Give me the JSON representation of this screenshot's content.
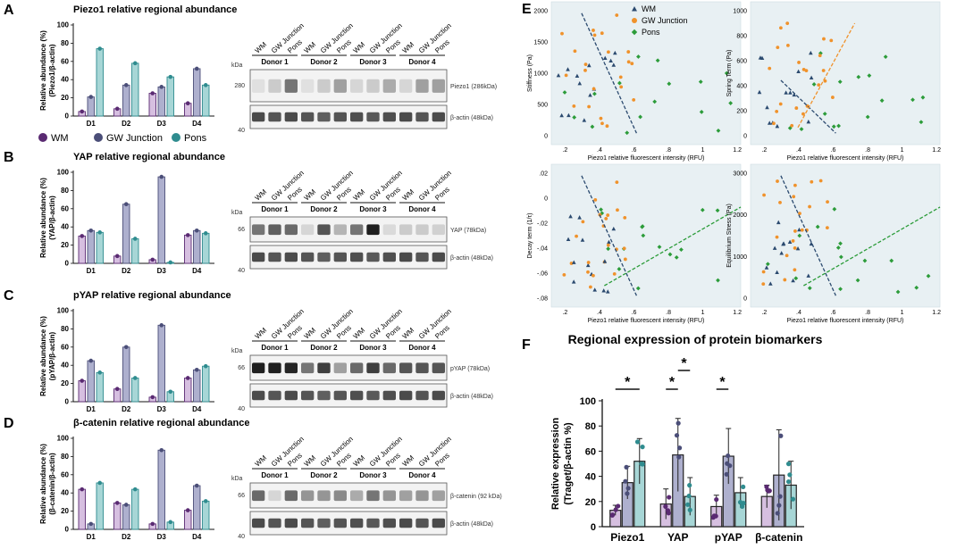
{
  "colors": {
    "wm": "#5a2a72",
    "gw": "#4b4e78",
    "pons": "#2f8c8f",
    "wm_fill": "#d6bfe0",
    "gw_fill": "#aeb0ce",
    "pons_fill": "#a7d6d6",
    "sc_wm": "#2b4a6f",
    "sc_gw": "#f0922b",
    "sc_pons": "#2c9c3a",
    "sc_bg": "#e8f0f3"
  },
  "legend_abcd": [
    "WM",
    "GW Junction",
    "Pons"
  ],
  "blot_lanes": [
    "WM",
    "GW Junction",
    "Pons"
  ],
  "donors": [
    "Donor 1",
    "Donor 2",
    "Donor 3",
    "Donor 4"
  ],
  "kda_label": "kDa",
  "panels": [
    {
      "letter": "A",
      "title": "Piezo1 relative regional abundance",
      "ylabel1": "Relative abundance (%)",
      "ylabel2": "(Piezo1/β-actin)",
      "band1": "Piezo1 (286kDa)",
      "band2": "β-actin (48kDa)",
      "mw1": "280",
      "mw2": "40"
    },
    {
      "letter": "B",
      "title": "YAP relative regional abundance",
      "ylabel1": "Relative abundance (%)",
      "ylabel2": "(YAP/β-actin)",
      "band1": "YAP (78kDa)",
      "band2": "β-actin (48kDa)",
      "mw1": "66",
      "mw2": "40"
    },
    {
      "letter": "C",
      "title": "pYAP relative regional abundance",
      "ylabel1": "Relative abundance (%)",
      "ylabel2": "(pYAP/β-actin)",
      "band1": "pYAP (78kDa)",
      "band2": "β-actin (48kDa)",
      "mw1": "66",
      "mw2": "40"
    },
    {
      "letter": "D",
      "title": "β-catenin relative regional abundance",
      "ylabel1": "Relative abundance (%)",
      "ylabel2": "(β-catenin/β-actin)",
      "band1": "β-catenin (92 kDa)",
      "band2": "β-actin (48kDa)",
      "mw1": "66",
      "mw2": "40"
    }
  ],
  "scatter_panel": {
    "letter": "E",
    "legend": [
      "WM",
      "GW Junction",
      "Pons"
    ],
    "xlabel": "Piezo1 relative fluorescent intensity (RFU)",
    "plots": [
      {
        "ylabel": "Stiffness (Pa)",
        "yticks": [
          "2000",
          "1500",
          "1000",
          "500",
          "0"
        ]
      },
      {
        "ylabel": "Spring Term (Pa)",
        "yticks": [
          "1000",
          "800",
          "600",
          "400",
          "200",
          "0"
        ]
      },
      {
        "ylabel": "Decay term (1/τ)",
        "yticks": [
          ".02",
          "0",
          "-.02",
          "-.04",
          "-.06",
          "-.08"
        ]
      },
      {
        "ylabel": "Equilibrium Stress (Pa)",
        "yticks": [
          "3000",
          "2000",
          "1000",
          "0"
        ]
      }
    ],
    "xticks": [
      ".2",
      ".4",
      ".6",
      ".8",
      "1",
      "1.2"
    ]
  },
  "chart_data": [
    {
      "type": "bar",
      "panel": "A",
      "title": "Piezo1 relative regional abundance",
      "categories": [
        "D1",
        "D2",
        "D3",
        "D4"
      ],
      "ylabel": "Relative abundance (%) (Piezo1/β-actin)",
      "ylim": [
        0,
        100
      ],
      "yticks": [
        0,
        20,
        40,
        60,
        80,
        100
      ],
      "series": [
        {
          "name": "WM",
          "values": [
            5,
            8,
            25,
            14
          ]
        },
        {
          "name": "GW Junction",
          "values": [
            21,
            34,
            32,
            52
          ]
        },
        {
          "name": "Pons",
          "values": [
            74,
            58,
            43,
            34
          ]
        }
      ]
    },
    {
      "type": "bar",
      "panel": "B",
      "title": "YAP relative regional abundance",
      "categories": [
        "D1",
        "D2",
        "D3",
        "D4"
      ],
      "ylabel": "Relative abundance (%) (YAP/β-actin)",
      "ylim": [
        0,
        100
      ],
      "yticks": [
        0,
        20,
        40,
        60,
        80,
        100
      ],
      "series": [
        {
          "name": "WM",
          "values": [
            30,
            8,
            4,
            31
          ]
        },
        {
          "name": "GW Junction",
          "values": [
            36,
            65,
            95,
            36
          ]
        },
        {
          "name": "Pons",
          "values": [
            34,
            27,
            1,
            33
          ]
        }
      ]
    },
    {
      "type": "bar",
      "panel": "C",
      "title": "pYAP relative regional abundance",
      "categories": [
        "D1",
        "D2",
        "D3",
        "D4"
      ],
      "ylabel": "Relative abundance (%) (pYAP/β-actin)",
      "ylim": [
        0,
        100
      ],
      "yticks": [
        0,
        20,
        40,
        60,
        80,
        100
      ],
      "series": [
        {
          "name": "WM",
          "values": [
            23,
            14,
            5,
            26
          ]
        },
        {
          "name": "GW Junction",
          "values": [
            45,
            60,
            84,
            35
          ]
        },
        {
          "name": "Pons",
          "values": [
            32,
            26,
            11,
            39
          ]
        }
      ]
    },
    {
      "type": "bar",
      "panel": "D",
      "title": "β-catenin relative regional abundance",
      "categories": [
        "D1",
        "D2",
        "D3",
        "D4"
      ],
      "ylabel": "Relative abundance (%) (β-catenin/β-actin)",
      "ylim": [
        0,
        100
      ],
      "yticks": [
        0,
        20,
        40,
        60,
        80,
        100
      ],
      "series": [
        {
          "name": "WM",
          "values": [
            44,
            29,
            6,
            21
          ]
        },
        {
          "name": "GW Junction",
          "values": [
            6,
            27,
            87,
            48
          ]
        },
        {
          "name": "Pons",
          "values": [
            51,
            44,
            8,
            31
          ]
        }
      ]
    },
    {
      "type": "bar",
      "panel": "F",
      "title": "Regional expression of protein biomarkers",
      "categories": [
        "Piezo1",
        "YAP",
        "pYAP",
        "β-catenin"
      ],
      "ylabel": "Relative expression (Traget/β-actin %)",
      "ylim": [
        0,
        100
      ],
      "yticks": [
        0,
        20,
        40,
        60,
        80,
        100
      ],
      "series": [
        {
          "name": "WM",
          "values": [
            13,
            18,
            16,
            24
          ],
          "err": [
            4,
            12,
            9,
            9
          ]
        },
        {
          "name": "GW Junction",
          "values": [
            35,
            57,
            56,
            41
          ],
          "err": [
            13,
            29,
            22,
            36
          ]
        },
        {
          "name": "Pons",
          "values": [
            52,
            24,
            27,
            33
          ],
          "err": [
            18,
            15,
            12,
            19
          ]
        }
      ],
      "significance": [
        "*",
        "*",
        "*",
        "*"
      ]
    }
  ]
}
